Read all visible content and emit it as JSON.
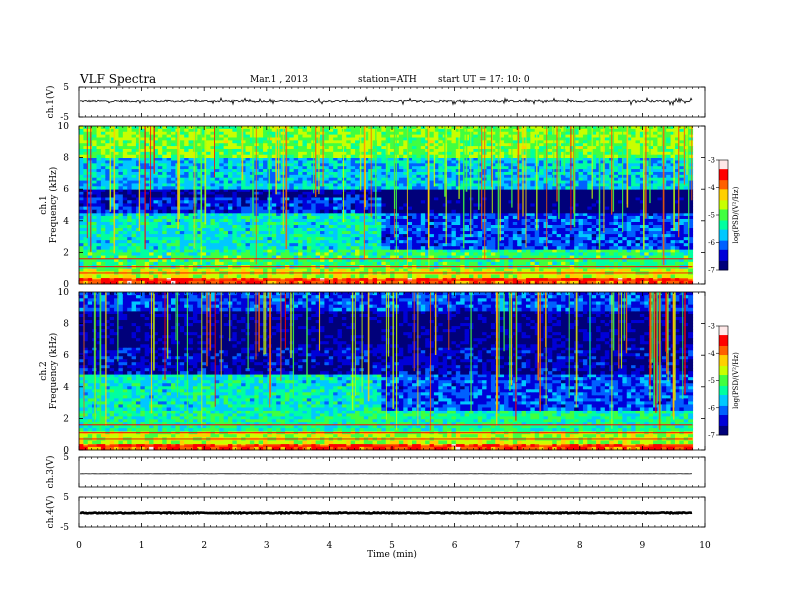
{
  "header": {
    "title": "VLF  Spectra",
    "date": "Mar.1  , 2013",
    "station": "station=ATH",
    "start": "start  UT  =    17: 10: 0"
  },
  "colors": {
    "frame": "#000000",
    "spectrogram_scale": [
      "#00007a",
      "#0000d8",
      "#0060ff",
      "#00c8ff",
      "#00ffa0",
      "#40ff40",
      "#c8ff00",
      "#ffd000",
      "#ff6000",
      "#ff0000",
      "#ffe8e8"
    ]
  },
  "chart_data": [
    {
      "type": "line",
      "name": "ch.1 waveform",
      "ylabel": "ch.1(V)",
      "yticks": [
        "5",
        "-5"
      ],
      "ylim": [
        -5,
        5
      ],
      "xlim": [
        0,
        10
      ],
      "description_values": {
        "baseline": 0.3,
        "amplitude": 0.6
      }
    },
    {
      "type": "heatmap",
      "name": "ch.1 spectrogram",
      "ylabel_top": "ch.1",
      "ylabel": "Frequency  (kHz)",
      "yticks": [
        "0",
        "2",
        "4",
        "6",
        "8",
        "10"
      ],
      "ylim": [
        0,
        10
      ],
      "xlim": [
        0,
        10
      ],
      "data_end_min": 9.8,
      "colorbar": {
        "label": "log(PSD/(V²/Hz)",
        "ticks": [
          "-3",
          "-4",
          "-5",
          "-6",
          "-7"
        ],
        "range": [
          -7,
          -3
        ]
      },
      "frequency_bands_logPSD": [
        {
          "from": 0.0,
          "to": 0.4,
          "value": -3.8
        },
        {
          "from": 0.4,
          "to": 1.0,
          "value": -4.6
        },
        {
          "from": 1.0,
          "to": 2.2,
          "value": -5.2
        },
        {
          "from": 2.2,
          "to": 4.5,
          "value": -5.5
        },
        {
          "from": 4.5,
          "to": 5.5,
          "value": -6.3
        },
        {
          "from": 5.5,
          "to": 6.0,
          "value": -6.7
        },
        {
          "from": 6.0,
          "to": 8.0,
          "value": -5.7
        },
        {
          "from": 8.0,
          "to": 10.0,
          "value": -4.9
        }
      ]
    },
    {
      "type": "heatmap",
      "name": "ch.2 spectrogram",
      "ylabel_top": "ch.2",
      "ylabel": "Frequency  (kHz)",
      "yticks": [
        "0",
        "2",
        "4",
        "6",
        "8",
        "10"
      ],
      "ylim": [
        0,
        10
      ],
      "xlim": [
        0,
        10
      ],
      "data_end_min": 9.8,
      "colorbar": {
        "label": "log(PSD/(V²/Hz)",
        "ticks": [
          "-3",
          "-4",
          "-5",
          "-6",
          "-7"
        ],
        "range": [
          -7,
          -3
        ]
      },
      "frequency_bands_logPSD": [
        {
          "from": 0.0,
          "to": 0.4,
          "value": -3.8
        },
        {
          "from": 0.4,
          "to": 1.2,
          "value": -4.7
        },
        {
          "from": 1.2,
          "to": 2.5,
          "value": -5.3
        },
        {
          "from": 2.5,
          "to": 4.8,
          "value": -5.5
        },
        {
          "from": 4.8,
          "to": 6.5,
          "value": -6.6
        },
        {
          "from": 6.5,
          "to": 8.8,
          "value": -6.8
        },
        {
          "from": 8.8,
          "to": 10.0,
          "value": -6.2
        }
      ]
    },
    {
      "type": "line",
      "name": "ch.3 waveform",
      "ylabel": "ch.3(V)",
      "yticks": [
        "5"
      ],
      "ylim": [
        -5,
        5
      ],
      "xlim": [
        0,
        10
      ],
      "description_values": {
        "baseline": -0.6,
        "amplitude": 0.05
      }
    },
    {
      "type": "line",
      "name": "ch.4 waveform",
      "ylabel": "ch.4(V)",
      "yticks": [
        "5",
        "-5"
      ],
      "ylim": [
        -5,
        5
      ],
      "xlim": [
        0,
        10
      ],
      "description_values": {
        "baseline": -0.3,
        "amplitude": 0.35
      }
    }
  ],
  "xaxis": {
    "label": "Time  (min)",
    "ticks": [
      "0",
      "1",
      "2",
      "3",
      "4",
      "5",
      "6",
      "7",
      "8",
      "9",
      "10"
    ],
    "range": [
      0,
      10
    ]
  }
}
